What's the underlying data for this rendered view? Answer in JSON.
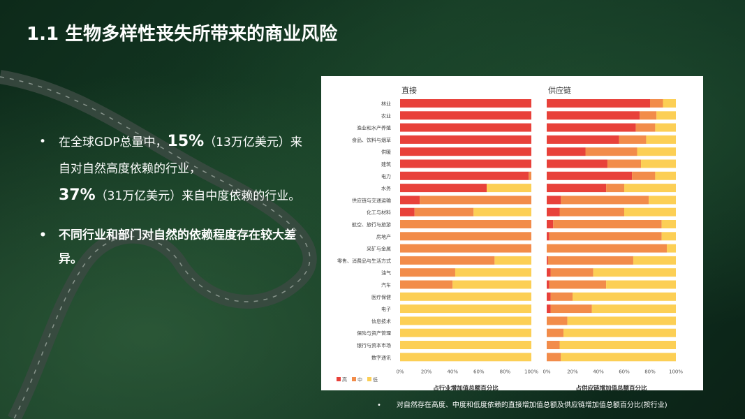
{
  "slide": {
    "title": "1.1 生物多样性丧失所带来的商业风险",
    "bullet_dot": "•",
    "bullet1": {
      "pre": "在全球GDP总量中，",
      "pct1": "15%",
      "mid1": "（13万亿美元）来自对自然高度依赖的行业，",
      "pct2": "37%",
      "mid2": "（31万亿美元）来自中度依赖的行业。"
    },
    "bullet2": "不同行业和部门对自然的依赖程度存在较大差异。",
    "footnote": "对自然存在高度、中度和低度依赖的直接增加值总额及供应链增加值总额百分比(按行业)"
  },
  "colors": {
    "high": "#E8413A",
    "medium": "#F28C4A",
    "low": "#FCCF55"
  },
  "chart_data": {
    "type": "bar",
    "orientation": "horizontal",
    "stacked": true,
    "categories": [
      "林业",
      "农业",
      "渔业和水产养殖",
      "食品、饮料与烟草",
      "供暖",
      "建筑",
      "电力",
      "水务",
      "供应链与交通运输",
      "化工与材料",
      "航空、旅行与旅游",
      "房地产",
      "采矿与金属",
      "零售、消费品与生活方式",
      "油气",
      "汽车",
      "医疗保健",
      "电子",
      "信息技术",
      "保险与资产管理",
      "银行与资本市场",
      "数字通讯"
    ],
    "legend": [
      "高",
      "中",
      "低"
    ],
    "panels": [
      {
        "title": "直接",
        "xlabel": "占行业增加值总额百分比",
        "xlim": [
          0,
          100
        ],
        "xticks": [
          "0%",
          "20%",
          "40%",
          "60%",
          "80%",
          "100%"
        ],
        "series": [
          {
            "name": "高",
            "values": [
              100,
              100,
              100,
              100,
              100,
              100,
              98,
              66,
              15,
              11,
              0,
              0,
              0,
              0,
              0,
              0,
              0,
              0,
              0,
              0,
              0,
              0
            ]
          },
          {
            "name": "中",
            "values": [
              0,
              0,
              0,
              0,
              0,
              0,
              2,
              0,
              85,
              45,
              100,
              100,
              100,
              72,
              42,
              40,
              0,
              0,
              0,
              0,
              0,
              0
            ]
          },
          {
            "name": "低",
            "values": [
              0,
              0,
              0,
              0,
              0,
              0,
              0,
              34,
              0,
              44,
              0,
              0,
              0,
              28,
              58,
              60,
              100,
              100,
              100,
              100,
              100,
              100
            ]
          }
        ]
      },
      {
        "title": "供应链",
        "xlabel": "占供应链增加值总额百分比",
        "xlim": [
          0,
          100
        ],
        "xticks": [
          "0%",
          "20%",
          "40%",
          "60%",
          "80%",
          "100%"
        ],
        "series": [
          {
            "name": "高",
            "values": [
              80,
              72,
              69,
              56,
              30,
              47,
              66,
              46,
              11,
              10,
              5,
              2,
              0,
              1,
              3,
              2,
              3,
              3,
              0,
              0,
              0,
              0
            ]
          },
          {
            "name": "中",
            "values": [
              10,
              13,
              15,
              21,
              40,
              26,
              18,
              14,
              68,
              50,
              84,
              87,
              93,
              66,
              33,
              44,
              17,
              32,
              16,
              13,
              10,
              11
            ]
          },
          {
            "name": "低",
            "values": [
              10,
              15,
              16,
              23,
              30,
              27,
              16,
              40,
              21,
              40,
              11,
              11,
              7,
              33,
              64,
              54,
              80,
              65,
              84,
              87,
              90,
              89
            ]
          }
        ]
      }
    ]
  }
}
